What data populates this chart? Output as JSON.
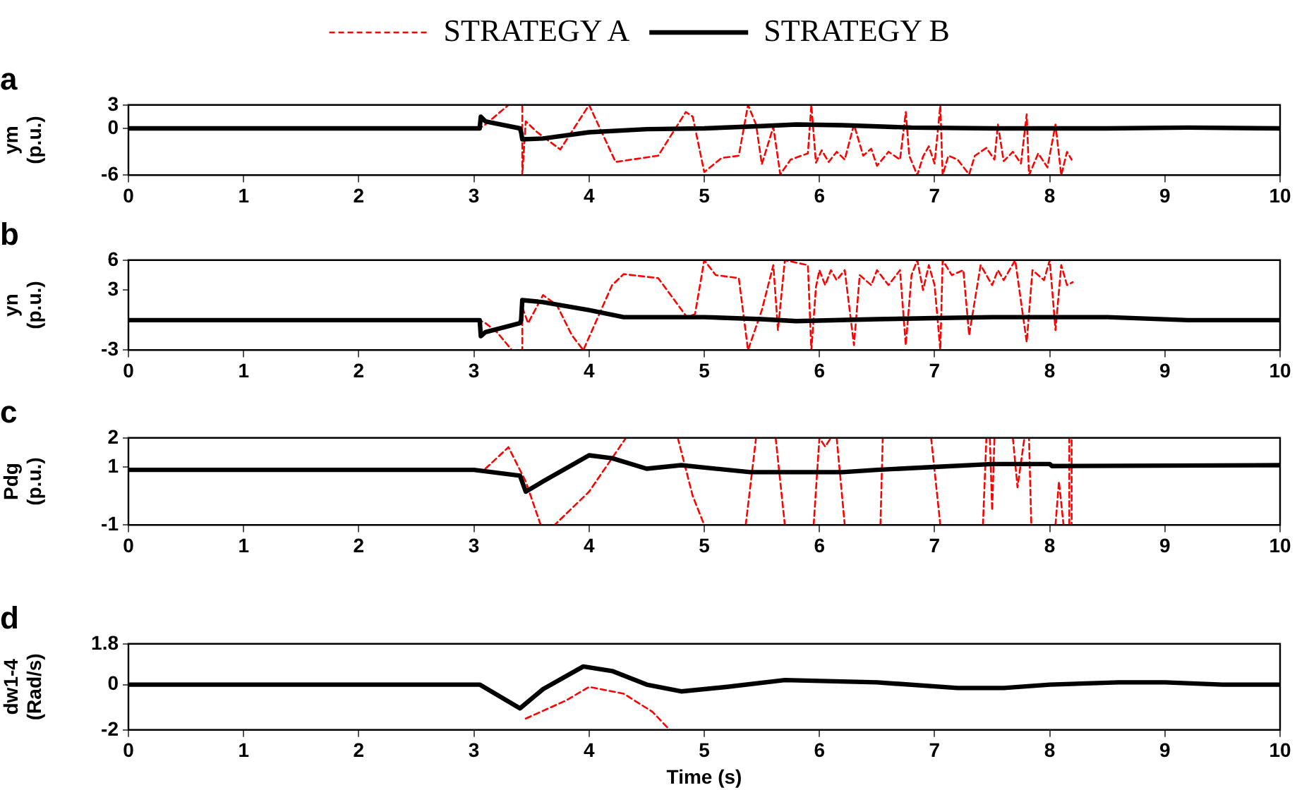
{
  "chart_data": [
    {
      "type": "line",
      "title": "a",
      "ylabel": "ym (p.u.)",
      "xlim": [
        0,
        10
      ],
      "xticks": [
        0,
        1,
        2,
        3,
        4,
        5,
        6,
        7,
        8,
        9,
        10
      ],
      "ylim": [
        -6,
        3
      ],
      "yticks": [
        -6,
        0,
        3
      ],
      "grid": false,
      "legend": "top",
      "marker": "none",
      "series": [
        {
          "name": "STRATEGY A",
          "color": "#ff0000",
          "line_style": "dashed",
          "x": [
            0,
            3.05,
            3.1,
            3.3,
            3.42,
            3.42,
            3.45,
            3.55,
            3.75,
            4.0,
            4.23,
            4.6,
            4.84,
            4.9,
            5.0,
            5.15,
            5.3,
            5.38,
            5.45,
            5.5,
            5.6,
            5.66,
            5.75,
            5.9,
            5.93,
            5.97,
            6.02,
            6.08,
            6.15,
            6.22,
            6.3,
            6.38,
            6.45,
            6.5,
            6.6,
            6.7,
            6.75,
            6.78,
            6.85,
            6.9,
            6.95,
            7.0,
            7.05,
            7.07,
            7.12,
            7.2,
            7.3,
            7.35,
            7.45,
            7.52,
            7.55,
            7.6,
            7.68,
            7.75,
            7.8,
            7.82,
            7.9,
            7.98,
            8.05,
            8.1,
            8.15,
            8.19
          ],
          "values": [
            0,
            0,
            0.5,
            3,
            3,
            -6,
            0.9,
            -0.5,
            -2.7,
            3,
            -4.3,
            -3.5,
            2.1,
            1.5,
            -5.6,
            -3.8,
            -3.5,
            3,
            0.5,
            -4.6,
            0.2,
            -5.9,
            -4,
            -3.2,
            3,
            -4.4,
            -2.8,
            -4.3,
            -3,
            -4,
            0.5,
            -3.5,
            -2.6,
            -4.8,
            -3,
            -4,
            2.1,
            -3.5,
            -6,
            -3.6,
            -2.3,
            -4.5,
            3,
            -6,
            -3.5,
            -4,
            -5.9,
            -3.5,
            -2.5,
            -4,
            0.5,
            -4.2,
            -3,
            -4.5,
            1.8,
            -6,
            -3.2,
            -5,
            0.5,
            -6,
            -3,
            -4
          ]
        },
        {
          "name": "STRATEGY B",
          "color": "#000000",
          "line_style": "solid",
          "x": [
            0,
            3.05,
            3.06,
            3.1,
            3.4,
            3.41,
            3.42,
            3.6,
            4.0,
            4.5,
            5.0,
            5.5,
            5.8,
            6.2,
            6.8,
            7.5,
            8.5,
            9.2,
            10
          ],
          "values": [
            0,
            0,
            1.5,
            0.9,
            0,
            -0.5,
            -1.4,
            -1.3,
            -0.5,
            -0.1,
            0,
            0.3,
            0.5,
            0.4,
            0.1,
            0,
            0,
            0.1,
            0
          ]
        }
      ]
    },
    {
      "type": "line",
      "title": "b",
      "ylabel": "yn (p.u.)",
      "xlim": [
        0,
        10
      ],
      "xticks": [
        0,
        1,
        2,
        3,
        4,
        5,
        6,
        7,
        8,
        9,
        10
      ],
      "ylim": [
        -3,
        6
      ],
      "yticks": [
        -3,
        3,
        6
      ],
      "grid": false,
      "marker": "none",
      "series": [
        {
          "color": "#ff0000",
          "line_style": "dashed",
          "x": [
            0,
            3.05,
            3.1,
            3.2,
            3.33,
            3.42,
            3.42,
            3.47,
            3.6,
            3.72,
            3.85,
            3.95,
            4.2,
            4.3,
            4.6,
            4.85,
            4.92,
            5.0,
            5.1,
            5.3,
            5.38,
            5.5,
            5.6,
            5.64,
            5.7,
            5.9,
            5.93,
            5.97,
            6.0,
            6.05,
            6.1,
            6.15,
            6.22,
            6.3,
            6.35,
            6.45,
            6.5,
            6.6,
            6.7,
            6.75,
            6.8,
            6.85,
            6.9,
            6.95,
            7.0,
            7.05,
            7.07,
            7.15,
            7.25,
            7.3,
            7.4,
            7.5,
            7.55,
            7.6,
            7.7,
            7.8,
            7.85,
            7.95,
            8.0,
            8.05,
            8.1,
            8.15,
            8.2
          ],
          "values": [
            0,
            0,
            -0.3,
            -1.2,
            -3,
            -3,
            1.3,
            -0.3,
            2.5,
            1.5,
            -1.5,
            -3,
            3.5,
            4.6,
            4.2,
            0.3,
            0.6,
            6,
            4.5,
            4.2,
            -3,
            1,
            5.5,
            -1,
            6,
            5.5,
            -3,
            3.3,
            5,
            3.5,
            5,
            4,
            5,
            -2.5,
            4.5,
            3.5,
            5,
            3.5,
            5,
            -2.5,
            4.5,
            6,
            3,
            5.5,
            3.5,
            -3,
            6,
            4.5,
            5,
            -1.5,
            5.5,
            3.5,
            5,
            4,
            6,
            -2.2,
            5,
            4,
            6,
            -1,
            5.5,
            3.5,
            3.8
          ]
        },
        {
          "color": "#000000",
          "line_style": "solid",
          "x": [
            0,
            3.05,
            3.06,
            3.1,
            3.4,
            3.41,
            3.42,
            3.6,
            4.0,
            4.3,
            5.0,
            5.5,
            5.8,
            6.5,
            7.0,
            7.5,
            8.5,
            9.2,
            10
          ],
          "values": [
            0,
            0,
            -1.6,
            -1.2,
            -0.3,
            0,
            2.0,
            1.8,
            1.0,
            0.3,
            0.3,
            0.1,
            -0.1,
            0.1,
            0.2,
            0.3,
            0.3,
            0,
            0
          ]
        }
      ]
    },
    {
      "type": "line",
      "title": "c",
      "ylabel": "Pdg (p.u.)",
      "xlim": [
        0,
        10
      ],
      "xticks": [
        0,
        1,
        2,
        3,
        4,
        5,
        6,
        7,
        8,
        9,
        10
      ],
      "ylim": [
        -1,
        2
      ],
      "yticks": [
        -1,
        1,
        2
      ],
      "grid": false,
      "marker": "none",
      "series": [
        {
          "color": "#ff0000",
          "line_style": "dashed",
          "x": [
            3.1,
            3.3,
            3.45,
            3.58,
            3.7,
            4.0,
            4.32,
            4.4,
            4.77,
            4.9,
            5.0,
            5.2,
            5.36,
            5.45,
            5.55,
            5.62,
            5.7,
            5.8,
            5.95,
            6.0,
            6.05,
            6.1,
            6.12,
            6.15,
            6.22,
            6.3,
            6.53,
            6.55,
            6.7,
            6.97,
            7.05,
            7.2,
            7.42,
            7.45,
            7.48,
            7.5,
            7.52,
            7.6,
            7.68,
            7.72,
            7.78,
            7.82,
            7.84,
            7.95,
            8.05,
            8.08,
            8.12,
            8.14,
            8.17,
            8.17,
            8.19,
            8.19
          ],
          "values": [
            0.94,
            1.68,
            0.5,
            -1,
            -1,
            0.15,
            2,
            null,
            2,
            0,
            -1,
            null,
            -1,
            2,
            null,
            2,
            -1,
            null,
            -1,
            2,
            1.7,
            2,
            null,
            2,
            -1,
            null,
            -1,
            2,
            null,
            2,
            -1,
            null,
            -1,
            2,
            2,
            -0.5,
            2,
            null,
            2,
            0.3,
            2,
            2,
            -1,
            null,
            -1,
            0.5,
            -1,
            null,
            -1,
            2,
            2,
            -1
          ]
        },
        {
          "color": "#000000",
          "line_style": "solid",
          "x": [
            0,
            3.0,
            3.4,
            3.45,
            3.6,
            4.0,
            4.2,
            4.5,
            4.8,
            5.4,
            6.2,
            6.5,
            7.0,
            7.5,
            8.0,
            8.02,
            10
          ],
          "values": [
            0.9,
            0.9,
            0.7,
            0.15,
            0.5,
            1.4,
            1.3,
            0.94,
            1.06,
            0.82,
            0.82,
            0.9,
            1.0,
            1.1,
            1.1,
            1.03,
            1.06
          ]
        }
      ]
    },
    {
      "type": "line",
      "title": "d",
      "ylabel": "dw1-4 (Rad/s)",
      "xlabel": "Time (s)",
      "xlim": [
        0,
        10
      ],
      "xticks": [
        0,
        1,
        2,
        3,
        4,
        5,
        6,
        7,
        8,
        9,
        10
      ],
      "ylim": [
        -2,
        1.8
      ],
      "yticks": [
        -2,
        0,
        1.8
      ],
      "grid": false,
      "marker": "none",
      "series": [
        {
          "color": "#ff0000",
          "line_style": "dashed",
          "x": [
            3.45,
            3.8,
            4.0,
            4.3,
            4.55,
            4.7
          ],
          "values": [
            -1.5,
            -0.7,
            -0.1,
            -0.4,
            -1.2,
            -2
          ]
        },
        {
          "color": "#000000",
          "line_style": "solid",
          "x": [
            0,
            3.05,
            3.4,
            3.6,
            3.95,
            4.2,
            4.5,
            4.8,
            5.2,
            5.7,
            6.5,
            7.2,
            7.6,
            8.0,
            8.6,
            9.0,
            9.5,
            10
          ],
          "values": [
            0,
            0,
            -1.05,
            -0.2,
            0.8,
            0.6,
            0,
            -0.3,
            -0.1,
            0.2,
            0.1,
            -0.15,
            -0.15,
            0,
            0.1,
            0.1,
            0,
            0
          ]
        }
      ]
    }
  ]
}
